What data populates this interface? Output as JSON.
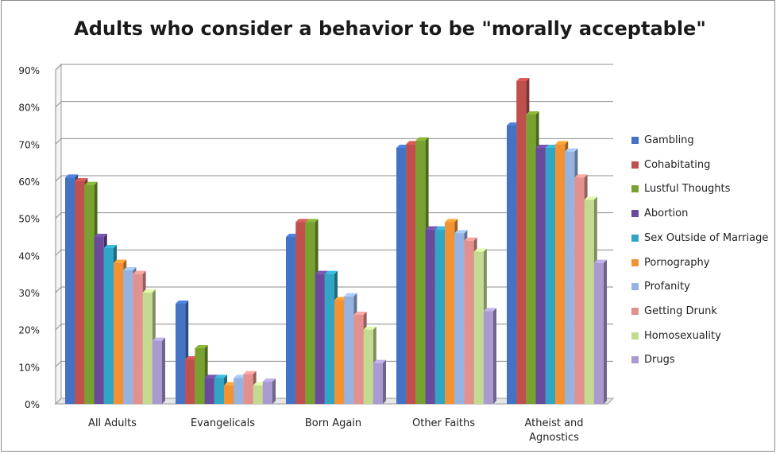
{
  "chart_data": {
    "type": "bar",
    "title": "Adults who consider a behavior to be \"morally acceptable\"",
    "xlabel": "",
    "ylabel": "",
    "ylim": [
      0,
      90
    ],
    "y_ticks": [
      "0%",
      "10%",
      "20%",
      "30%",
      "40%",
      "50%",
      "60%",
      "70%",
      "80%",
      "90%"
    ],
    "y_tick_values": [
      0,
      10,
      20,
      30,
      40,
      50,
      60,
      70,
      80,
      90
    ],
    "grid": true,
    "legend_position": "right",
    "categories": [
      [
        "All Adults"
      ],
      [
        "Evangelicals"
      ],
      [
        "Born Again"
      ],
      [
        "Other Faiths"
      ],
      [
        "Atheist and",
        "Agnostics"
      ]
    ],
    "series": [
      {
        "name": "Gambling",
        "color": "#4472c4",
        "values": [
          61,
          27,
          45,
          69,
          75
        ]
      },
      {
        "name": "Cohabitating",
        "color": "#c0504d",
        "values": [
          60,
          12,
          49,
          70,
          87
        ]
      },
      {
        "name": "Lustful Thoughts",
        "color": "#78a22f",
        "values": [
          59,
          15,
          49,
          71,
          78
        ]
      },
      {
        "name": "Abortion",
        "color": "#6a4a9c",
        "values": [
          45,
          7,
          35,
          47,
          69
        ]
      },
      {
        "name": "Sex Outside of Marriage",
        "color": "#31a5c4",
        "values": [
          42,
          7,
          35,
          47,
          69
        ]
      },
      {
        "name": "Pornography",
        "color": "#f39232",
        "values": [
          38,
          5,
          28,
          49,
          70
        ]
      },
      {
        "name": "Profanity",
        "color": "#95b3e0",
        "values": [
          36,
          7,
          29,
          46,
          68
        ]
      },
      {
        "name": "Getting Drunk",
        "color": "#e3918e",
        "values": [
          35,
          8,
          24,
          44,
          61
        ]
      },
      {
        "name": "Homosexuality",
        "color": "#c4da90",
        "values": [
          30,
          5,
          20,
          41,
          55
        ]
      },
      {
        "name": "Drugs",
        "color": "#a99bcf",
        "values": [
          17,
          6,
          11,
          25,
          38
        ]
      }
    ]
  }
}
